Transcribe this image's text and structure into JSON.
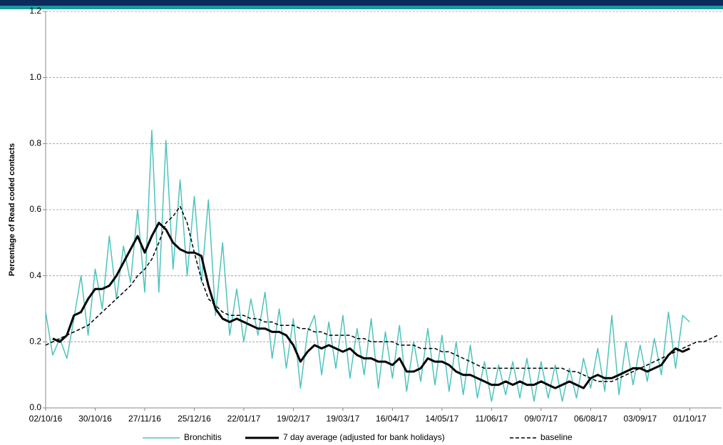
{
  "chart_data": {
    "type": "line",
    "y_label": "Percentage of Read coded contacts",
    "x": [
      "02/10/16",
      "06/10/16",
      "10/10/16",
      "14/10/16",
      "18/10/16",
      "22/10/16",
      "26/10/16",
      "30/10/16",
      "03/11/16",
      "07/11/16",
      "11/11/16",
      "15/11/16",
      "19/11/16",
      "23/11/16",
      "27/11/16",
      "01/12/16",
      "05/12/16",
      "09/12/16",
      "13/12/16",
      "17/12/16",
      "21/12/16",
      "25/12/16",
      "29/12/16",
      "02/01/17",
      "06/01/17",
      "10/01/17",
      "14/01/17",
      "18/01/17",
      "22/01/17",
      "26/01/17",
      "30/01/17",
      "03/02/17",
      "07/02/17",
      "11/02/17",
      "15/02/17",
      "19/02/17",
      "23/02/17",
      "27/02/17",
      "03/03/17",
      "07/03/17",
      "11/03/17",
      "15/03/17",
      "19/03/17",
      "23/03/17",
      "27/03/17",
      "31/03/17",
      "04/04/17",
      "08/04/17",
      "12/04/17",
      "16/04/17",
      "20/04/17",
      "24/04/17",
      "28/04/17",
      "02/05/17",
      "06/05/17",
      "10/05/17",
      "14/05/17",
      "18/05/17",
      "22/05/17",
      "26/05/17",
      "30/05/17",
      "03/06/17",
      "07/06/17",
      "11/06/17",
      "15/06/17",
      "19/06/17",
      "23/06/17",
      "27/06/17",
      "01/07/17",
      "05/07/17",
      "09/07/17",
      "13/07/17",
      "17/07/17",
      "21/07/17",
      "25/07/17",
      "29/07/17",
      "02/08/17",
      "06/08/17",
      "10/08/17",
      "14/08/17",
      "18/08/17",
      "22/08/17",
      "26/08/17",
      "30/08/17",
      "03/09/17",
      "07/09/17",
      "11/09/17",
      "15/09/17",
      "19/09/17",
      "23/09/17",
      "27/09/17",
      "01/10/17",
      "05/10/17",
      "09/10/17",
      "13/10/17",
      "17/10/17"
    ],
    "series": [
      {
        "name": "Bronchitis",
        "color": "#4ec3bd",
        "dash": false,
        "width": 1.5,
        "values": [
          0.29,
          0.16,
          0.21,
          0.15,
          0.27,
          0.4,
          0.22,
          0.42,
          0.3,
          0.52,
          0.33,
          0.49,
          0.38,
          0.6,
          0.35,
          0.84,
          0.35,
          0.81,
          0.42,
          0.69,
          0.4,
          0.64,
          0.38,
          0.63,
          0.28,
          0.5,
          0.22,
          0.36,
          0.2,
          0.33,
          0.22,
          0.35,
          0.15,
          0.3,
          0.12,
          0.27,
          0.06,
          0.23,
          0.28,
          0.1,
          0.26,
          0.12,
          0.28,
          0.09,
          0.24,
          0.1,
          0.27,
          0.06,
          0.23,
          0.09,
          0.25,
          0.05,
          0.2,
          0.08,
          0.24,
          0.07,
          0.22,
          0.05,
          0.2,
          0.04,
          0.19,
          0.03,
          0.14,
          0.02,
          0.13,
          0.04,
          0.14,
          0.03,
          0.15,
          0.02,
          0.14,
          0.03,
          0.13,
          0.02,
          0.12,
          0.03,
          0.15,
          0.06,
          0.18,
          0.05,
          0.28,
          0.04,
          0.2,
          0.07,
          0.19,
          0.08,
          0.21,
          0.1,
          0.29,
          0.12,
          0.28,
          0.26,
          null,
          null,
          null,
          null
        ]
      },
      {
        "name": "7 day average (adjusted for bank holidays)",
        "color": "#000000",
        "dash": false,
        "width": 3,
        "values": [
          null,
          0.21,
          0.2,
          0.22,
          0.28,
          0.29,
          0.33,
          0.36,
          0.36,
          0.37,
          0.4,
          0.44,
          0.48,
          0.52,
          0.47,
          0.52,
          0.56,
          0.54,
          0.5,
          0.48,
          0.47,
          0.47,
          0.46,
          0.37,
          0.3,
          0.27,
          0.26,
          0.27,
          0.26,
          0.25,
          0.24,
          0.24,
          0.23,
          0.23,
          0.22,
          0.19,
          0.14,
          0.17,
          0.19,
          0.18,
          0.19,
          0.18,
          0.17,
          0.18,
          0.16,
          0.15,
          0.15,
          0.14,
          0.14,
          0.13,
          0.15,
          0.11,
          0.11,
          0.12,
          0.15,
          0.14,
          0.14,
          0.13,
          0.11,
          0.1,
          0.1,
          0.09,
          0.08,
          0.07,
          0.07,
          0.08,
          0.07,
          0.08,
          0.07,
          0.07,
          0.08,
          0.07,
          0.06,
          0.07,
          0.08,
          0.07,
          0.06,
          0.09,
          0.1,
          0.09,
          0.09,
          0.1,
          0.11,
          0.12,
          0.12,
          0.11,
          0.12,
          0.13,
          0.16,
          0.18,
          0.17,
          0.18,
          null,
          null,
          null,
          null
        ]
      },
      {
        "name": "baseline",
        "color": "#000000",
        "dash": true,
        "width": 1.5,
        "values": [
          0.19,
          0.2,
          0.21,
          0.22,
          0.23,
          0.24,
          0.25,
          0.27,
          0.29,
          0.31,
          0.33,
          0.35,
          0.37,
          0.4,
          0.42,
          0.45,
          0.5,
          0.56,
          0.58,
          0.61,
          0.56,
          0.47,
          0.39,
          0.33,
          0.31,
          0.29,
          0.28,
          0.28,
          0.28,
          0.27,
          0.27,
          0.26,
          0.26,
          0.25,
          0.25,
          0.25,
          0.24,
          0.24,
          0.23,
          0.23,
          0.22,
          0.22,
          0.22,
          0.22,
          0.21,
          0.21,
          0.2,
          0.2,
          0.2,
          0.2,
          0.19,
          0.19,
          0.19,
          0.18,
          0.18,
          0.18,
          0.17,
          0.17,
          0.16,
          0.15,
          0.14,
          0.13,
          0.12,
          0.12,
          0.12,
          0.12,
          0.12,
          0.12,
          0.12,
          0.12,
          0.12,
          0.12,
          0.12,
          0.12,
          0.11,
          0.11,
          0.1,
          0.09,
          0.08,
          0.08,
          0.08,
          0.09,
          0.1,
          0.11,
          0.12,
          0.13,
          0.14,
          0.15,
          0.16,
          0.17,
          0.18,
          0.19,
          0.2,
          0.2,
          0.21,
          0.22
        ]
      }
    ],
    "xlim": [
      "02/10/16",
      "19/10/17"
    ],
    "xticks": [
      "02/10/16",
      "30/10/16",
      "27/11/16",
      "25/12/16",
      "22/01/17",
      "19/02/17",
      "19/03/17",
      "16/04/17",
      "14/05/17",
      "11/06/17",
      "09/07/17",
      "06/08/17",
      "03/09/17",
      "01/10/17"
    ],
    "ylim": [
      0,
      1.2
    ],
    "yticks": [
      {
        "value": 0,
        "label": "0.0"
      },
      0.2,
      0.4,
      0.6,
      0.8,
      {
        "value": 1,
        "label": "1.0"
      },
      1.2
    ],
    "grid": true,
    "legend": "bottom"
  }
}
